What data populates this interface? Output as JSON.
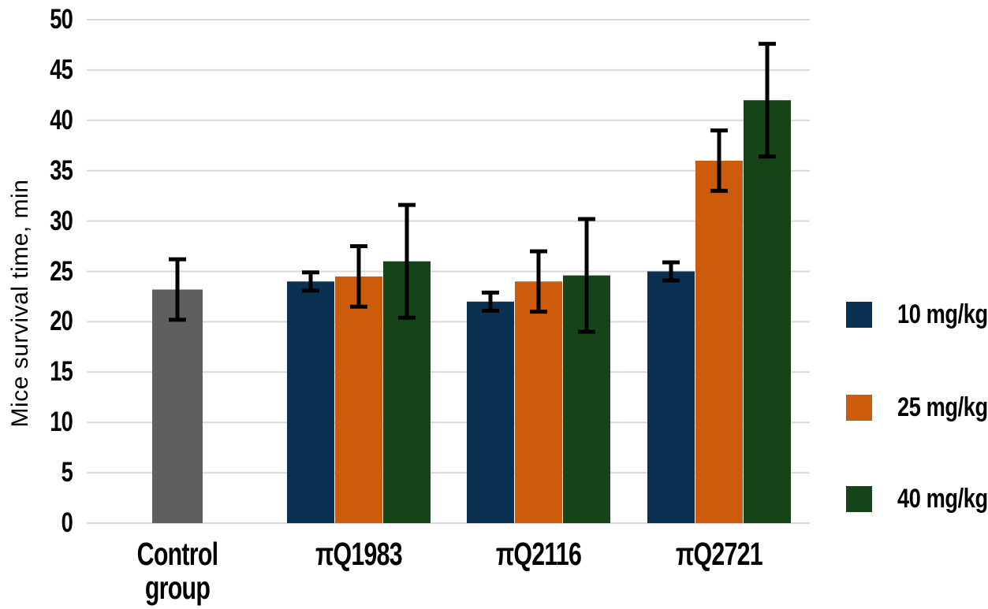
{
  "chart_data": {
    "type": "bar",
    "title": "",
    "xlabel": "",
    "ylabel": "Mice survival time, min",
    "ylim": [
      0,
      50
    ],
    "ytick_step": 5,
    "yticks": [
      0,
      5,
      10,
      15,
      20,
      25,
      30,
      35,
      40,
      45,
      50
    ],
    "grid": true,
    "legend_position": "right",
    "error_bar_color": "#000000",
    "gridline_color": "#d9d9d9",
    "series": [
      {
        "name": "10 mg/kg",
        "color": "#0b3152"
      },
      {
        "name": "25 mg/kg",
        "color": "#cc5c0b"
      },
      {
        "name": "40 mg/kg",
        "color": "#154418"
      }
    ],
    "groups": [
      {
        "label": "Control group",
        "label_lines": [
          "Control",
          "group"
        ],
        "bars": [
          {
            "series": "Control",
            "value": 23.2,
            "error": 3.0,
            "color": "#5f5f5f"
          }
        ]
      },
      {
        "label": "πQ1983",
        "label_lines": [
          "πQ1983"
        ],
        "bars": [
          {
            "series": "10 mg/kg",
            "value": 24.0,
            "error": 0.9,
            "color": "#0b3152"
          },
          {
            "series": "25 mg/kg",
            "value": 24.5,
            "error": 3.0,
            "color": "#cc5c0b"
          },
          {
            "series": "40 mg/kg",
            "value": 26.0,
            "error": 5.6,
            "color": "#154418"
          }
        ]
      },
      {
        "label": "πQ2116",
        "label_lines": [
          "πQ2116"
        ],
        "bars": [
          {
            "series": "10 mg/kg",
            "value": 22.0,
            "error": 0.9,
            "color": "#0b3152"
          },
          {
            "series": "25 mg/kg",
            "value": 24.0,
            "error": 3.0,
            "color": "#cc5c0b"
          },
          {
            "series": "40 mg/kg",
            "value": 24.6,
            "error": 5.6,
            "color": "#154418"
          }
        ]
      },
      {
        "label": "πQ2721",
        "label_lines": [
          "πQ2721"
        ],
        "bars": [
          {
            "series": "10 mg/kg",
            "value": 25.0,
            "error": 0.9,
            "color": "#0b3152"
          },
          {
            "series": "25 mg/kg",
            "value": 36.0,
            "error": 3.0,
            "color": "#cc5c0b"
          },
          {
            "series": "40 mg/kg",
            "value": 42.0,
            "error": 5.6,
            "color": "#154418"
          }
        ]
      }
    ]
  }
}
